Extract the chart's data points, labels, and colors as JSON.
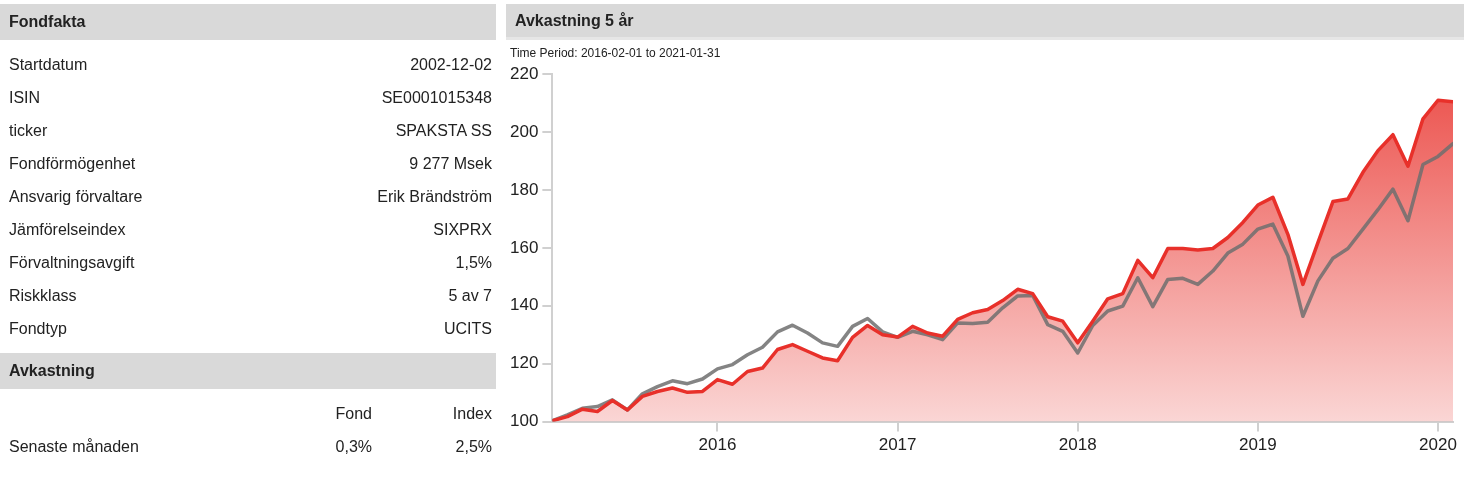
{
  "chart_data": [
    {
      "type": "other",
      "title": "Fondfakta",
      "annotations": [
        "Startdatum",
        "2002-12-02",
        "ISIN",
        "SE0001015348",
        "ticker",
        "SPAKSTA SS",
        "Fondförmögenhet",
        "9 277 Msek",
        "Ansvarig förvaltare",
        "Erik Brändström",
        "Jämförelseindex",
        "SIXPRX",
        "Förvaltningsavgift",
        "1,5%",
        "Riskklass",
        "5 av 7",
        "Fondtyp",
        "UCITS"
      ]
    },
    {
      "type": "other",
      "title": "Avkastning",
      "annotations": [
        "Fond",
        "Index",
        "Senaste månaden",
        "0,3%",
        "2,5%"
      ]
    },
    {
      "type": "line",
      "title": "Avkastning 5 år",
      "subtitle": "Time Period: 2016-02-01 to 2021-01-31",
      "x": [
        "2016-01",
        "2016-02",
        "2016-03",
        "2016-04",
        "2016-05",
        "2016-06",
        "2016-07",
        "2016-08",
        "2016-09",
        "2016-10",
        "2016-11",
        "2016-12",
        "2017-01",
        "2017-02",
        "2017-03",
        "2017-04",
        "2017-05",
        "2017-06",
        "2017-07",
        "2017-08",
        "2017-09",
        "2017-10",
        "2017-11",
        "2017-12",
        "2018-01",
        "2018-02",
        "2018-03",
        "2018-04",
        "2018-05",
        "2018-06",
        "2018-07",
        "2018-08",
        "2018-09",
        "2018-10",
        "2018-11",
        "2018-12",
        "2019-01",
        "2019-02",
        "2019-03",
        "2019-04",
        "2019-05",
        "2019-06",
        "2019-07",
        "2019-08",
        "2019-09",
        "2019-10",
        "2019-11",
        "2019-12",
        "2020-01",
        "2020-02",
        "2020-03",
        "2020-04",
        "2020-05",
        "2020-06",
        "2020-07",
        "2020-08",
        "2020-09",
        "2020-10",
        "2020-11",
        "2020-12",
        "2021-01"
      ],
      "series": [
        {
          "type": "area",
          "color": "#e8302a",
          "values": [
            100.3,
            101.7,
            104.3,
            103.5,
            107.3,
            104,
            108.7,
            110.4,
            111.6,
            110.1,
            110.4,
            114.5,
            112.9,
            117.3,
            118.5,
            124.9,
            126.6,
            124.3,
            122,
            121,
            129.1,
            133.2,
            130,
            129.2,
            132.9,
            130.6,
            129.5,
            135.3,
            137.6,
            138.7,
            141.8,
            145.7,
            144.2,
            136.2,
            134.7,
            127.2,
            134.7,
            142.4,
            144.2,
            155.7,
            149.7,
            159.8,
            159.8,
            159.3,
            159.8,
            163.6,
            168.8,
            174.8,
            177.5,
            164.7,
            147.4,
            161.8,
            176,
            176.9,
            186.1,
            193.6,
            199.1,
            188.2,
            204.6,
            211,
            210.5
          ]
        },
        {
          "type": "line",
          "color": "#6e6e6e",
          "values": [
            100.3,
            102.3,
            104.6,
            105.2,
            107.5,
            104,
            109.6,
            112.1,
            114.1,
            113.1,
            114.7,
            118.2,
            119.7,
            123.1,
            125.7,
            131,
            133.3,
            130.6,
            127.2,
            126,
            132.9,
            135.6,
            131,
            129.1,
            131.2,
            130,
            128.3,
            134.1,
            133.9,
            134.3,
            139.3,
            143.4,
            143.6,
            133.5,
            131.2,
            123.7,
            133.2,
            138.2,
            139.9,
            149.7,
            139.7,
            149.1,
            149.5,
            147.4,
            152,
            158.2,
            161.3,
            166.5,
            168.2,
            157.2,
            136.4,
            148.6,
            156.4,
            159.8,
            166.5,
            173.2,
            180.3,
            169.4,
            188.8,
            191.6,
            196
          ]
        }
      ],
      "xlim": [
        "2016-01",
        "2021-01"
      ],
      "xticks": [
        {
          "value": "2016-12",
          "label": "2016"
        },
        {
          "value": "2017-12",
          "label": "2017"
        },
        {
          "value": "2018-12",
          "label": "2018"
        },
        {
          "value": "2019-12",
          "label": "2019"
        },
        {
          "value": "2020-12",
          "label": "2020"
        }
      ],
      "ylim": [
        100,
        220
      ],
      "yticks": [
        100,
        120,
        140,
        160,
        180,
        200,
        220
      ],
      "grid": false,
      "legend": false,
      "marker": "none"
    }
  ]
}
